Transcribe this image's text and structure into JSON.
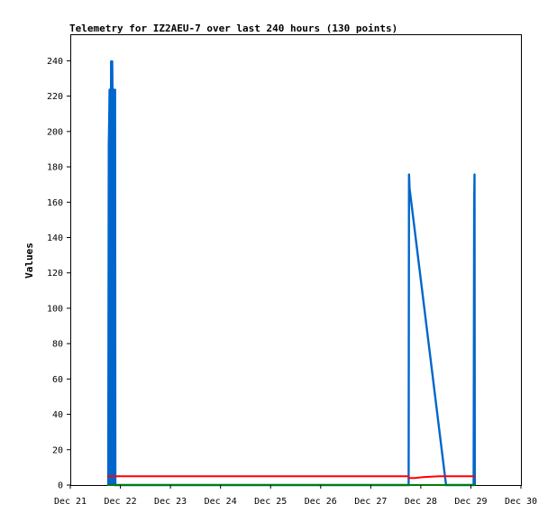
{
  "chart_data": {
    "type": "line",
    "title": "Telemetry for IZ2AEU-7 over last 240 hours (130 points)",
    "xlabel": "",
    "ylabel": "Values",
    "xlim": [
      "2023-12-21",
      "2023-12-30"
    ],
    "ylim": [
      0,
      255
    ],
    "x_ticks": [
      "Dec 21",
      "Dec 22",
      "Dec 23",
      "Dec 24",
      "Dec 25",
      "Dec 26",
      "Dec 27",
      "Dec 28",
      "Dec 29",
      "Dec 30"
    ],
    "y_ticks": [
      0,
      20,
      40,
      60,
      80,
      100,
      120,
      140,
      160,
      180,
      200,
      220,
      240
    ],
    "grid": false,
    "legend": "none",
    "series": [
      {
        "color": "#0066cc",
        "points": [
          [
            "2023-12-21T18:12",
            0
          ],
          [
            "2023-12-21T18:28",
            192
          ],
          [
            "2023-12-21T18:40",
            208
          ],
          [
            "2023-12-21T18:50",
            224
          ],
          [
            "2023-12-21T18:58",
            0
          ],
          [
            "2023-12-21T19:05",
            160
          ],
          [
            "2023-12-21T19:12",
            88
          ],
          [
            "2023-12-21T19:20",
            176
          ],
          [
            "2023-12-21T19:35",
            240
          ],
          [
            "2023-12-21T19:42",
            192
          ],
          [
            "2023-12-21T19:50",
            0
          ],
          [
            "2023-12-21T20:05",
            240
          ],
          [
            "2023-12-21T20:12",
            224
          ],
          [
            "2023-12-21T20:20",
            176
          ],
          [
            "2023-12-21T20:28",
            0
          ],
          [
            "2023-12-21T20:35",
            88
          ],
          [
            "2023-12-21T20:45",
            112
          ],
          [
            "2023-12-21T20:52",
            224
          ],
          [
            "2023-12-21T21:00",
            0
          ],
          [
            "2023-12-21T21:05",
            192
          ],
          [
            "2023-12-21T21:12",
            96
          ],
          [
            "2023-12-21T21:20",
            208
          ],
          [
            "2023-12-21T21:28",
            224
          ],
          [
            "2023-12-21T21:35",
            0
          ],
          [
            "2023-12-27T18:10",
            0
          ],
          [
            "2023-12-27T18:15",
            88
          ],
          [
            "2023-12-27T18:20",
            176
          ],
          [
            "2023-12-27T18:35",
            168
          ],
          [
            "2023-12-28T12:05",
            0
          ],
          [
            "2023-12-29T01:20",
            0
          ],
          [
            "2023-12-29T01:28",
            80
          ],
          [
            "2023-12-29T01:35",
            160
          ],
          [
            "2023-12-29T01:45",
            176
          ],
          [
            "2023-12-29T01:52",
            0
          ]
        ]
      },
      {
        "color": "#ff0000",
        "points": [
          [
            "2023-12-21T17:50",
            5
          ],
          [
            "2023-12-27T18:00",
            5
          ],
          [
            "2023-12-27T18:20",
            4
          ],
          [
            "2023-12-27T21:00",
            4
          ],
          [
            "2023-12-28T01:00",
            4.5
          ],
          [
            "2023-12-28T09:00",
            5
          ],
          [
            "2023-12-29T02:00",
            5
          ]
        ]
      },
      {
        "color": "#008000",
        "points": [
          [
            "2023-12-21T17:50",
            0
          ],
          [
            "2023-12-29T02:00",
            0
          ]
        ]
      }
    ]
  }
}
